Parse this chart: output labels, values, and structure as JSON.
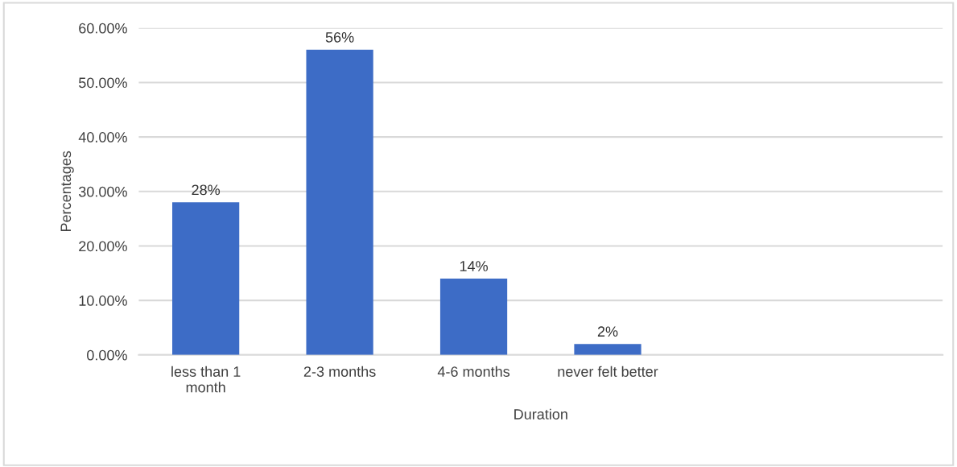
{
  "chart_data": {
    "type": "bar",
    "xlabel": "Duration",
    "ylabel": "Percentages",
    "categories": [
      "less than 1\nmonth",
      "2-3 months",
      "4-6 months",
      "never felt better",
      null,
      null
    ],
    "values": [
      28,
      56,
      14,
      2,
      null,
      null
    ],
    "value_labels": [
      "28%",
      "56%",
      "14%",
      "2%",
      null,
      null
    ],
    "color": "#3d6cc6",
    "ylim": [
      0,
      60
    ],
    "yticks": [
      {
        "value": 0,
        "label": "0.00%"
      },
      {
        "value": 10,
        "label": "10.00%"
      },
      {
        "value": 20,
        "label": "20.00%"
      },
      {
        "value": 30,
        "label": "30.00%"
      },
      {
        "value": 40,
        "label": "40.00%"
      },
      {
        "value": 50,
        "label": "50.00%"
      },
      {
        "value": 60,
        "label": "60.00%"
      }
    ],
    "grid": "y",
    "legend": false
  }
}
